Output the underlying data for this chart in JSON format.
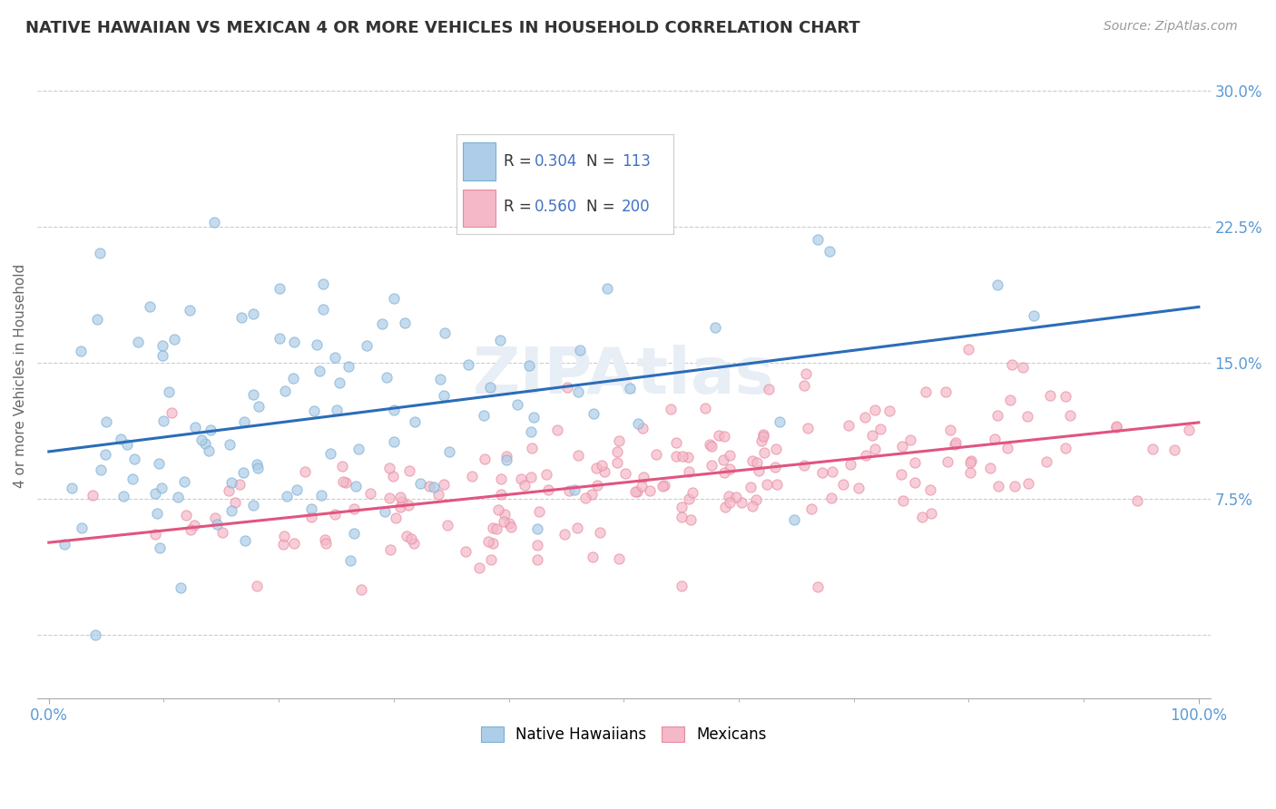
{
  "title": "NATIVE HAWAIIAN VS MEXICAN 4 OR MORE VEHICLES IN HOUSEHOLD CORRELATION CHART",
  "source": "Source: ZipAtlas.com",
  "ylabel": "4 or more Vehicles in Household",
  "background_color": "#ffffff",
  "title_fontsize": 13,
  "axis_label_color": "#5b9bd5",
  "grid_color": "#aaaaaa",
  "legend_R_blue": "0.304",
  "legend_N_blue": "113",
  "legend_R_pink": "0.560",
  "legend_N_pink": "200",
  "blue_dot_color": "#aecde8",
  "blue_dot_edge": "#7aafd4",
  "blue_line_color": "#2b6cb8",
  "pink_dot_color": "#f4b8c8",
  "pink_dot_edge": "#e88aa0",
  "pink_line_color": "#e05580",
  "legend_text_color": "#4472c4",
  "n_blue": 113,
  "n_pink": 200,
  "r_blue": 0.304,
  "r_pink": 0.56,
  "seed_blue": 42,
  "seed_pink": 7
}
